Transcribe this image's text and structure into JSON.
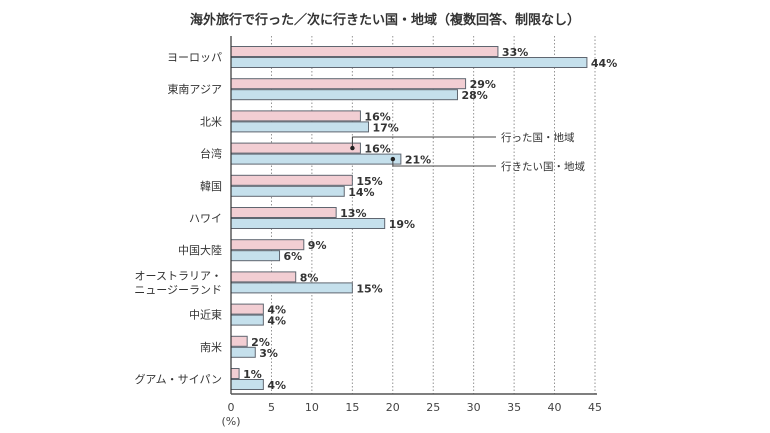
{
  "chart_data": {
    "type": "bar",
    "orientation": "horizontal",
    "title": "海外旅行で行った／次に行きたい国・地域（複数回答、制限なし）",
    "xlabel": "(%)",
    "xlim": [
      0,
      45
    ],
    "xticks": [
      "0",
      "5",
      "10",
      "15",
      "20",
      "25",
      "30",
      "35",
      "40",
      "45"
    ],
    "grid": "vertical-dotted",
    "categories": [
      [
        "ヨーロッパ"
      ],
      [
        "東南アジア"
      ],
      [
        "北米"
      ],
      [
        "台湾"
      ],
      [
        "韓国"
      ],
      [
        "ハワイ"
      ],
      [
        "中国大陸"
      ],
      [
        "オーストラリア・",
        "ニュージーランド"
      ],
      [
        "中近東"
      ],
      [
        "南米"
      ],
      [
        "グアム・サイパン"
      ]
    ],
    "series": [
      {
        "name": "行った国・地域",
        "color": "#f2ced3",
        "values": [
          33,
          29,
          16,
          16,
          15,
          13,
          9,
          8,
          4,
          2,
          1
        ],
        "labels": [
          "33%",
          "29%",
          "16%",
          "16%",
          "15%",
          "13%",
          "9%",
          "8%",
          "4%",
          "2%",
          "1%"
        ]
      },
      {
        "name": "行きたい国・地域",
        "color": "#c5e0ec",
        "values": [
          44,
          28,
          17,
          21,
          14,
          19,
          6,
          15,
          4,
          3,
          4
        ],
        "labels": [
          "44%",
          "28%",
          "17%",
          "21%",
          "14%",
          "19%",
          "6%",
          "15%",
          "4%",
          "3%",
          "4%"
        ]
      }
    ],
    "annotations": [
      {
        "text": "行った国・地域",
        "series": 0,
        "category_index": 3
      },
      {
        "text": "行きたい国・地域",
        "series": 1,
        "category_index": 3
      }
    ],
    "bar_edge_color": "#5f6670"
  }
}
